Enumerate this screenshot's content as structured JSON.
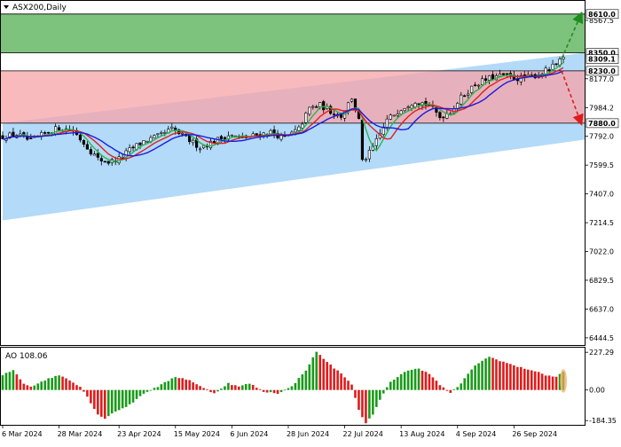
{
  "chart_data": [
    {
      "type": "candlestick",
      "symbol_label": "ASX200,Daily",
      "y_axis_ticks": [
        "8567.5",
        "8177.0",
        "7984.2",
        "7792.0",
        "7599.5",
        "7407.0",
        "7214.5",
        "7022.0",
        "6829.5",
        "6637.0",
        "6444.5"
      ],
      "y_tick_values": [
        8567.5,
        8177.0,
        7984.2,
        7792.0,
        7599.5,
        7407.0,
        7214.5,
        7022.0,
        6829.5,
        6637.0,
        6444.5
      ],
      "ylim": [
        6396.4,
        8697.8
      ],
      "x_axis_ticks": [
        "6 Mar 2024",
        "28 Mar 2024",
        "23 Apr 2024",
        "15 May 2024",
        "6 Jun 2024",
        "28 Jun 2024",
        "22 Jul 2024",
        "13 Aug 2024",
        "4 Sep 2024",
        "26 Sep 2024"
      ],
      "x_tick_index": [
        0,
        16,
        33,
        49,
        65,
        81,
        97,
        113,
        129,
        145
      ],
      "bar_count": 160,
      "price_levels": [
        {
          "label": "8610.0",
          "value": 8610.0,
          "color": "#000000"
        },
        {
          "label": "8350.0",
          "value": 8350.0,
          "color": "#000000"
        },
        {
          "label": "8309.1",
          "value": 8309.1,
          "color": "#000000"
        },
        {
          "label": "8230.0",
          "value": 8230.0,
          "color": "#000000"
        },
        {
          "label": "7880.0",
          "value": 7880.0,
          "color": "#000000"
        }
      ],
      "zones": [
        {
          "name": "target-up",
          "from": 8350.0,
          "to": 8610.0,
          "color": "#7dc27d"
        },
        {
          "name": "resistance-zone",
          "from": 7880.0,
          "to": 8230.0,
          "color": "#f7a3a8"
        }
      ],
      "channel": {
        "color": "#a6d4f7",
        "upper_start": 7880.0,
        "upper_end": 8350.0,
        "lower_start": 7230.0,
        "lower_end": 7770.0
      },
      "scenarios": [
        {
          "name": "bullish",
          "from": 8309.1,
          "to": 8610.0,
          "color": "#1e8c1e"
        },
        {
          "name": "bearish",
          "from": 8230.0,
          "to": 7880.0,
          "color": "#e01b1b"
        }
      ],
      "close_anchors": [
        [
          0,
          7790
        ],
        [
          4,
          7805
        ],
        [
          8,
          7760
        ],
        [
          12,
          7810
        ],
        [
          16,
          7850
        ],
        [
          20,
          7830
        ],
        [
          24,
          7720
        ],
        [
          27,
          7640
        ],
        [
          30,
          7620
        ],
        [
          33,
          7640
        ],
        [
          36,
          7700
        ],
        [
          40,
          7760
        ],
        [
          44,
          7790
        ],
        [
          48,
          7840
        ],
        [
          52,
          7780
        ],
        [
          56,
          7720
        ],
        [
          60,
          7760
        ],
        [
          64,
          7800
        ],
        [
          68,
          7780
        ],
        [
          72,
          7800
        ],
        [
          76,
          7820
        ],
        [
          80,
          7780
        ],
        [
          84,
          7840
        ],
        [
          87,
          7980
        ],
        [
          90,
          8000
        ],
        [
          93,
          7960
        ],
        [
          96,
          7930
        ],
        [
          99,
          8050
        ],
        [
          101,
          7900
        ],
        [
          102,
          7620
        ],
        [
          104,
          7680
        ],
        [
          106,
          7760
        ],
        [
          109,
          7900
        ],
        [
          113,
          7980
        ],
        [
          117,
          8030
        ],
        [
          121,
          8000
        ],
        [
          124,
          7920
        ],
        [
          127,
          7960
        ],
        [
          130,
          8050
        ],
        [
          134,
          8140
        ],
        [
          138,
          8180
        ],
        [
          142,
          8200
        ],
        [
          146,
          8180
        ],
        [
          150,
          8190
        ],
        [
          154,
          8230
        ],
        [
          157,
          8270
        ],
        [
          159,
          8309
        ]
      ],
      "moving_averages": [
        {
          "name": "ma-fast",
          "period": 5,
          "color": "#2db34a"
        },
        {
          "name": "ma-medium",
          "period": 9,
          "color": "#e02020"
        },
        {
          "name": "ma-slow",
          "period": 14,
          "color": "#1a1ae0"
        }
      ],
      "candle_colors": {
        "up": "#000000",
        "down": "#000000"
      }
    },
    {
      "type": "bar",
      "indicator_label": "AO 108.06",
      "y_axis_ticks": [
        "227.29",
        "0.00",
        "-184.35"
      ],
      "y_tick_values": [
        227.29,
        0.0,
        -184.35
      ],
      "ylim": [
        -210.0,
        255.0
      ],
      "bar_colors": {
        "rising": "#1a9a1a",
        "falling": "#e01b1b"
      },
      "value_anchors": [
        [
          0,
          90
        ],
        [
          3,
          120
        ],
        [
          6,
          40
        ],
        [
          8,
          20
        ],
        [
          12,
          60
        ],
        [
          16,
          90
        ],
        [
          19,
          60
        ],
        [
          22,
          20
        ],
        [
          24,
          -40
        ],
        [
          27,
          -150
        ],
        [
          29,
          -170
        ],
        [
          31,
          -140
        ],
        [
          33,
          -120
        ],
        [
          36,
          -90
        ],
        [
          40,
          -20
        ],
        [
          44,
          20
        ],
        [
          49,
          80
        ],
        [
          53,
          60
        ],
        [
          57,
          10
        ],
        [
          60,
          -20
        ],
        [
          64,
          40
        ],
        [
          67,
          20
        ],
        [
          70,
          40
        ],
        [
          74,
          -10
        ],
        [
          78,
          -20
        ],
        [
          82,
          20
        ],
        [
          86,
          120
        ],
        [
          89,
          230
        ],
        [
          93,
          150
        ],
        [
          97,
          80
        ],
        [
          99,
          30
        ],
        [
          101,
          -120
        ],
        [
          103,
          -200
        ],
        [
          105,
          -150
        ],
        [
          107,
          -60
        ],
        [
          110,
          50
        ],
        [
          114,
          110
        ],
        [
          118,
          130
        ],
        [
          121,
          100
        ],
        [
          124,
          30
        ],
        [
          127,
          -20
        ],
        [
          130,
          40
        ],
        [
          134,
          150
        ],
        [
          138,
          200
        ],
        [
          142,
          170
        ],
        [
          146,
          140
        ],
        [
          150,
          120
        ],
        [
          154,
          90
        ],
        [
          157,
          80
        ],
        [
          159,
          108
        ]
      ]
    }
  ]
}
